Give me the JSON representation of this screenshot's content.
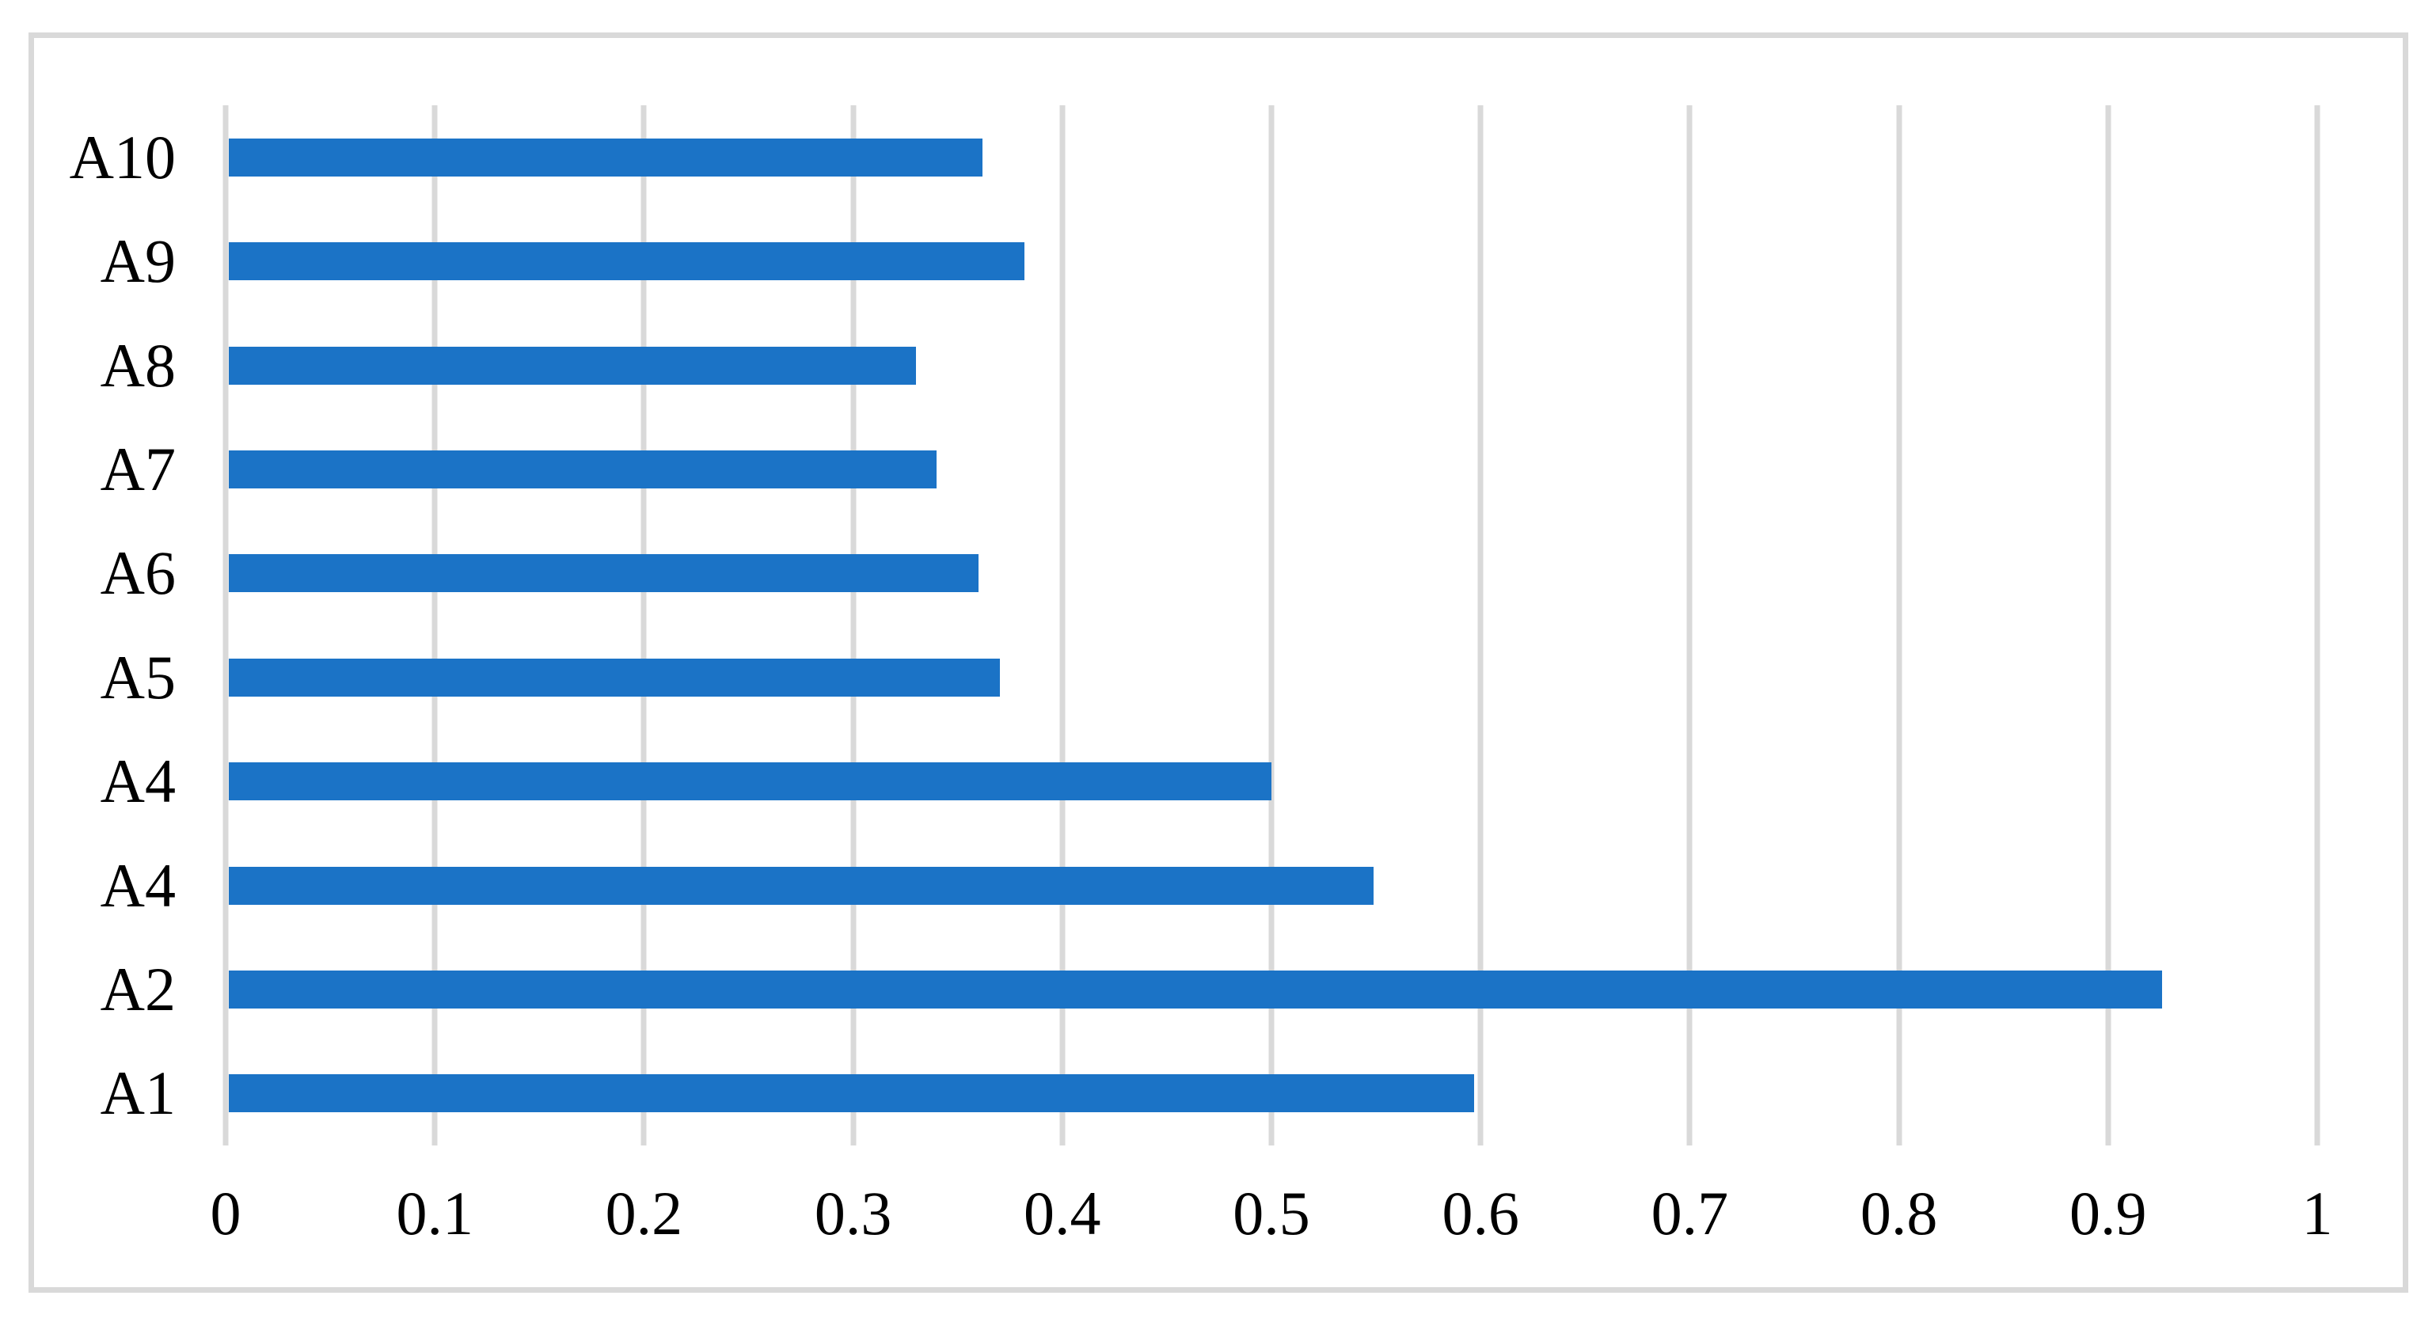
{
  "chart_data": {
    "type": "bar",
    "orientation": "horizontal",
    "title": "",
    "xlabel": "",
    "ylabel": "",
    "categories": [
      "A10",
      "A9",
      "A8",
      "A7",
      "A6",
      "A5",
      "A4",
      "A4",
      "A2",
      "A1"
    ],
    "values": [
      0.362,
      0.382,
      0.33,
      0.34,
      0.36,
      0.37,
      0.5,
      0.549,
      0.926,
      0.597
    ],
    "x_ticks": [
      "0",
      "0.1",
      "0.2",
      "0.3",
      "0.4",
      "0.5",
      "0.6",
      "0.7",
      "0.8",
      "0.9",
      "1"
    ],
    "xlim": [
      0,
      1
    ],
    "grid": "vertical-gridlines-on",
    "legend": "none",
    "colors": {
      "bar": "#1B73C6",
      "gridline": "#D9D9D9",
      "figure_border": "#D9D9D9",
      "text": "#000000",
      "background": "#FFFFFF"
    }
  }
}
